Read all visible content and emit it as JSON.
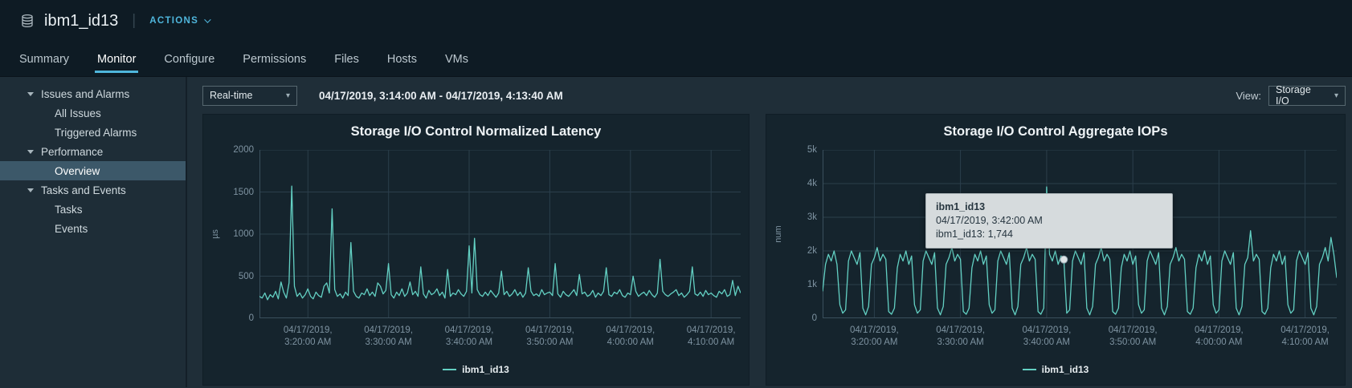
{
  "header": {
    "title": "ibm1_id13",
    "actions_label": "ACTIONS"
  },
  "tabs": [
    {
      "label": "Summary",
      "active": false
    },
    {
      "label": "Monitor",
      "active": true
    },
    {
      "label": "Configure",
      "active": false
    },
    {
      "label": "Permissions",
      "active": false
    },
    {
      "label": "Files",
      "active": false
    },
    {
      "label": "Hosts",
      "active": false
    },
    {
      "label": "VMs",
      "active": false
    }
  ],
  "sidebar": {
    "groups": [
      {
        "label": "Issues and Alarms",
        "children": [
          "All Issues",
          "Triggered Alarms"
        ]
      },
      {
        "label": "Performance",
        "children": [
          "Overview"
        ]
      },
      {
        "label": "Tasks and Events",
        "children": [
          "Tasks",
          "Events"
        ]
      }
    ],
    "selected": "Overview"
  },
  "toolbar": {
    "range_select": "Real-time",
    "date_range": "04/17/2019, 3:14:00 AM - 04/17/2019, 4:13:40 AM",
    "view_label": "View:",
    "view_select": "Storage I/O"
  },
  "colors": {
    "series": "#63d0c3",
    "accent": "#4fb6dc",
    "grid": "#2b3f4b",
    "tooltip_bg": "#d6dbdd"
  },
  "chart_data": [
    {
      "type": "line",
      "title": "Storage I/O Control Normalized Latency",
      "ylabel": "µs",
      "ylim": [
        0,
        2000
      ],
      "y_ticks": [
        0,
        500,
        1000,
        1500,
        2000
      ],
      "y_tick_labels": [
        "0",
        "500",
        "1000",
        "1500",
        "2000"
      ],
      "x_ticks": [
        {
          "date": "04/17/2019,",
          "time": "3:20:00 AM",
          "pos": 0.1006
        },
        {
          "date": "04/17/2019,",
          "time": "3:30:00 AM",
          "pos": 0.2682
        },
        {
          "date": "04/17/2019,",
          "time": "3:40:00 AM",
          "pos": 0.4358
        },
        {
          "date": "04/17/2019,",
          "time": "3:50:00 AM",
          "pos": 0.6034
        },
        {
          "date": "04/17/2019,",
          "time": "4:00:00 AM",
          "pos": 0.7709
        },
        {
          "date": "04/17/2019,",
          "time": "4:10:00 AM",
          "pos": 0.9385
        }
      ],
      "legend": "ibm1_id13",
      "series": [
        {
          "name": "ibm1_id13",
          "color": "#63d0c3",
          "values": [
            260,
            240,
            300,
            220,
            280,
            250,
            320,
            230,
            430,
            310,
            240,
            420,
            1570,
            380,
            260,
            300,
            240,
            280,
            350,
            260,
            230,
            310,
            270,
            250,
            380,
            420,
            300,
            1300,
            340,
            260,
            290,
            240,
            310,
            270,
            900,
            320,
            260,
            240,
            300,
            280,
            350,
            270,
            310,
            260,
            420,
            380,
            290,
            330,
            650,
            280,
            240,
            310,
            270,
            350,
            260,
            300,
            430,
            280,
            320,
            260,
            610,
            290,
            240,
            330,
            280,
            300,
            350,
            270,
            310,
            240,
            580,
            260,
            300,
            280,
            340,
            290,
            260,
            320,
            860,
            300,
            950,
            340,
            280,
            260,
            310,
            270,
            330,
            290,
            250,
            300,
            560,
            280,
            320,
            260,
            290,
            340,
            270,
            310,
            250,
            300,
            600,
            320,
            270,
            290,
            260,
            340,
            280,
            300,
            310,
            270,
            650,
            290,
            250,
            320,
            280,
            260,
            300,
            340,
            270,
            520,
            290,
            310,
            260,
            280,
            330,
            250,
            300,
            270,
            320,
            600,
            280,
            260,
            310,
            290,
            340,
            270,
            250,
            300,
            280,
            500,
            320,
            260,
            290,
            310,
            270,
            330,
            280,
            250,
            300,
            700,
            320,
            280,
            260,
            290,
            310,
            340,
            270,
            300,
            250,
            280,
            320,
            610,
            290,
            270,
            310,
            260,
            330,
            280,
            300,
            270,
            250,
            320,
            290,
            340,
            260,
            280,
            450,
            270,
            380,
            300
          ]
        }
      ]
    },
    {
      "type": "line",
      "title": "Storage I/O Control Aggregate IOPs",
      "ylabel": "num",
      "ylim": [
        0,
        5000
      ],
      "y_ticks": [
        0,
        1000,
        2000,
        3000,
        4000,
        5000
      ],
      "y_tick_labels": [
        "0",
        "1k",
        "2k",
        "3k",
        "4k",
        "5k"
      ],
      "x_ticks": [
        {
          "date": "04/17/2019,",
          "time": "3:20:00 AM",
          "pos": 0.1006
        },
        {
          "date": "04/17/2019,",
          "time": "3:30:00 AM",
          "pos": 0.2682
        },
        {
          "date": "04/17/2019,",
          "time": "3:40:00 AM",
          "pos": 0.4358
        },
        {
          "date": "04/17/2019,",
          "time": "3:50:00 AM",
          "pos": 0.6034
        },
        {
          "date": "04/17/2019,",
          "time": "4:00:00 AM",
          "pos": 0.7709
        },
        {
          "date": "04/17/2019,",
          "time": "4:10:00 AM",
          "pos": 0.9385
        }
      ],
      "legend": "ibm1_id13",
      "marker": {
        "index": 84
      },
      "tooltip": {
        "name": "ibm1_id13",
        "time": "04/17/2019, 3:42:00 AM",
        "value": "ibm1_id13: 1,744"
      },
      "series": [
        {
          "name": "ibm1_id13",
          "color": "#63d0c3",
          "values": [
            800,
            1600,
            1900,
            1700,
            2000,
            1600,
            400,
            150,
            250,
            1700,
            2000,
            1800,
            1600,
            1950,
            300,
            100,
            350,
            1600,
            1800,
            2100,
            1700,
            1900,
            1750,
            200,
            120,
            300,
            1500,
            1900,
            1700,
            2000,
            1600,
            1850,
            400,
            150,
            250,
            1700,
            2000,
            1800,
            1600,
            1950,
            300,
            100,
            350,
            1600,
            1800,
            2100,
            1700,
            1900,
            1750,
            200,
            120,
            300,
            1500,
            1900,
            1700,
            2000,
            1600,
            1850,
            400,
            150,
            250,
            1700,
            2000,
            1800,
            1600,
            1950,
            300,
            100,
            350,
            1600,
            1800,
            2100,
            1700,
            1900,
            1750,
            200,
            120,
            300,
            3900,
            1900,
            1700,
            2000,
            1600,
            1850,
            1744,
            150,
            250,
            1700,
            2000,
            1800,
            1600,
            1950,
            300,
            100,
            350,
            1600,
            1800,
            2100,
            1700,
            1900,
            1750,
            200,
            120,
            300,
            1500,
            1900,
            1700,
            2000,
            1600,
            1850,
            400,
            150,
            250,
            1700,
            2000,
            1800,
            1600,
            1950,
            300,
            100,
            350,
            1600,
            1800,
            2100,
            1700,
            1900,
            1750,
            200,
            120,
            300,
            1500,
            1900,
            1700,
            2000,
            1600,
            1850,
            400,
            150,
            250,
            1700,
            2000,
            1800,
            1600,
            1950,
            300,
            100,
            350,
            1600,
            1800,
            2600,
            1700,
            1900,
            1750,
            200,
            120,
            300,
            1500,
            1900,
            1700,
            2000,
            1600,
            1850,
            400,
            150,
            250,
            1700,
            2000,
            1800,
            1600,
            1950,
            300,
            100,
            350,
            1600,
            1800,
            2100,
            1700,
            2400,
            1900,
            1200
          ]
        }
      ]
    }
  ]
}
